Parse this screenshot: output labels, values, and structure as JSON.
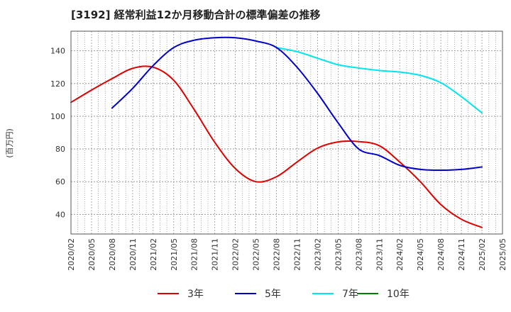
{
  "chart_data": {
    "type": "line",
    "title": "[3192]  経常利益12か月移動合計の標準偏差の推移",
    "ylabel": "(百万円)",
    "xlabel": "",
    "ylim": [
      28,
      152
    ],
    "yticks": [
      40,
      60,
      80,
      100,
      120,
      140
    ],
    "x_ticks": [
      "2020/02",
      "2020/05",
      "2020/08",
      "2020/11",
      "2021/02",
      "2021/05",
      "2021/08",
      "2021/11",
      "2022/02",
      "2022/05",
      "2022/08",
      "2022/11",
      "2023/02",
      "2023/05",
      "2023/08",
      "2023/11",
      "2024/02",
      "2024/05",
      "2024/08",
      "2024/11",
      "2025/02",
      "2025/05"
    ],
    "grid": true,
    "legend_position": "bottom",
    "series": [
      {
        "name": "3年",
        "color": "#e00000",
        "points": [
          [
            "2020/02",
            108.5
          ],
          [
            "2020/05",
            116
          ],
          [
            "2020/08",
            123
          ],
          [
            "2020/11",
            129.3
          ],
          [
            "2021/02",
            130
          ],
          [
            "2021/05",
            122
          ],
          [
            "2021/08",
            104
          ],
          [
            "2021/11",
            84
          ],
          [
            "2022/02",
            68
          ],
          [
            "2022/05",
            60
          ],
          [
            "2022/08",
            63
          ],
          [
            "2022/11",
            72
          ],
          [
            "2023/02",
            80.5
          ],
          [
            "2023/05",
            84.3
          ],
          [
            "2023/08",
            84.5
          ],
          [
            "2023/11",
            82
          ],
          [
            "2024/02",
            72
          ],
          [
            "2024/05",
            60
          ],
          [
            "2024/08",
            46
          ],
          [
            "2024/11",
            37
          ],
          [
            "2025/02",
            32
          ]
        ]
      },
      {
        "name": "5年",
        "color": "#0000cc",
        "points": [
          [
            "2020/08",
            105
          ],
          [
            "2020/11",
            117
          ],
          [
            "2021/02",
            131
          ],
          [
            "2021/05",
            142
          ],
          [
            "2021/08",
            146.5
          ],
          [
            "2021/11",
            148
          ],
          [
            "2022/02",
            148
          ],
          [
            "2022/05",
            146
          ],
          [
            "2022/08",
            142
          ],
          [
            "2022/11",
            130
          ],
          [
            "2023/02",
            114
          ],
          [
            "2023/05",
            96
          ],
          [
            "2023/08",
            80
          ],
          [
            "2023/11",
            76
          ],
          [
            "2024/02",
            70
          ],
          [
            "2024/05",
            67.5
          ],
          [
            "2024/08",
            67
          ],
          [
            "2024/11",
            67.5
          ],
          [
            "2025/02",
            69
          ]
        ]
      },
      {
        "name": "7年",
        "color": "#00e5ee",
        "points": [
          [
            "2022/08",
            142
          ],
          [
            "2022/11",
            139.5
          ],
          [
            "2023/02",
            135.5
          ],
          [
            "2023/05",
            131.5
          ],
          [
            "2023/08",
            129.5
          ],
          [
            "2023/11",
            128
          ],
          [
            "2024/02",
            127
          ],
          [
            "2024/05",
            125
          ],
          [
            "2024/08",
            120.5
          ],
          [
            "2024/11",
            112
          ],
          [
            "2025/02",
            102
          ]
        ]
      },
      {
        "name": "10年",
        "color": "#008000",
        "points": []
      }
    ]
  }
}
